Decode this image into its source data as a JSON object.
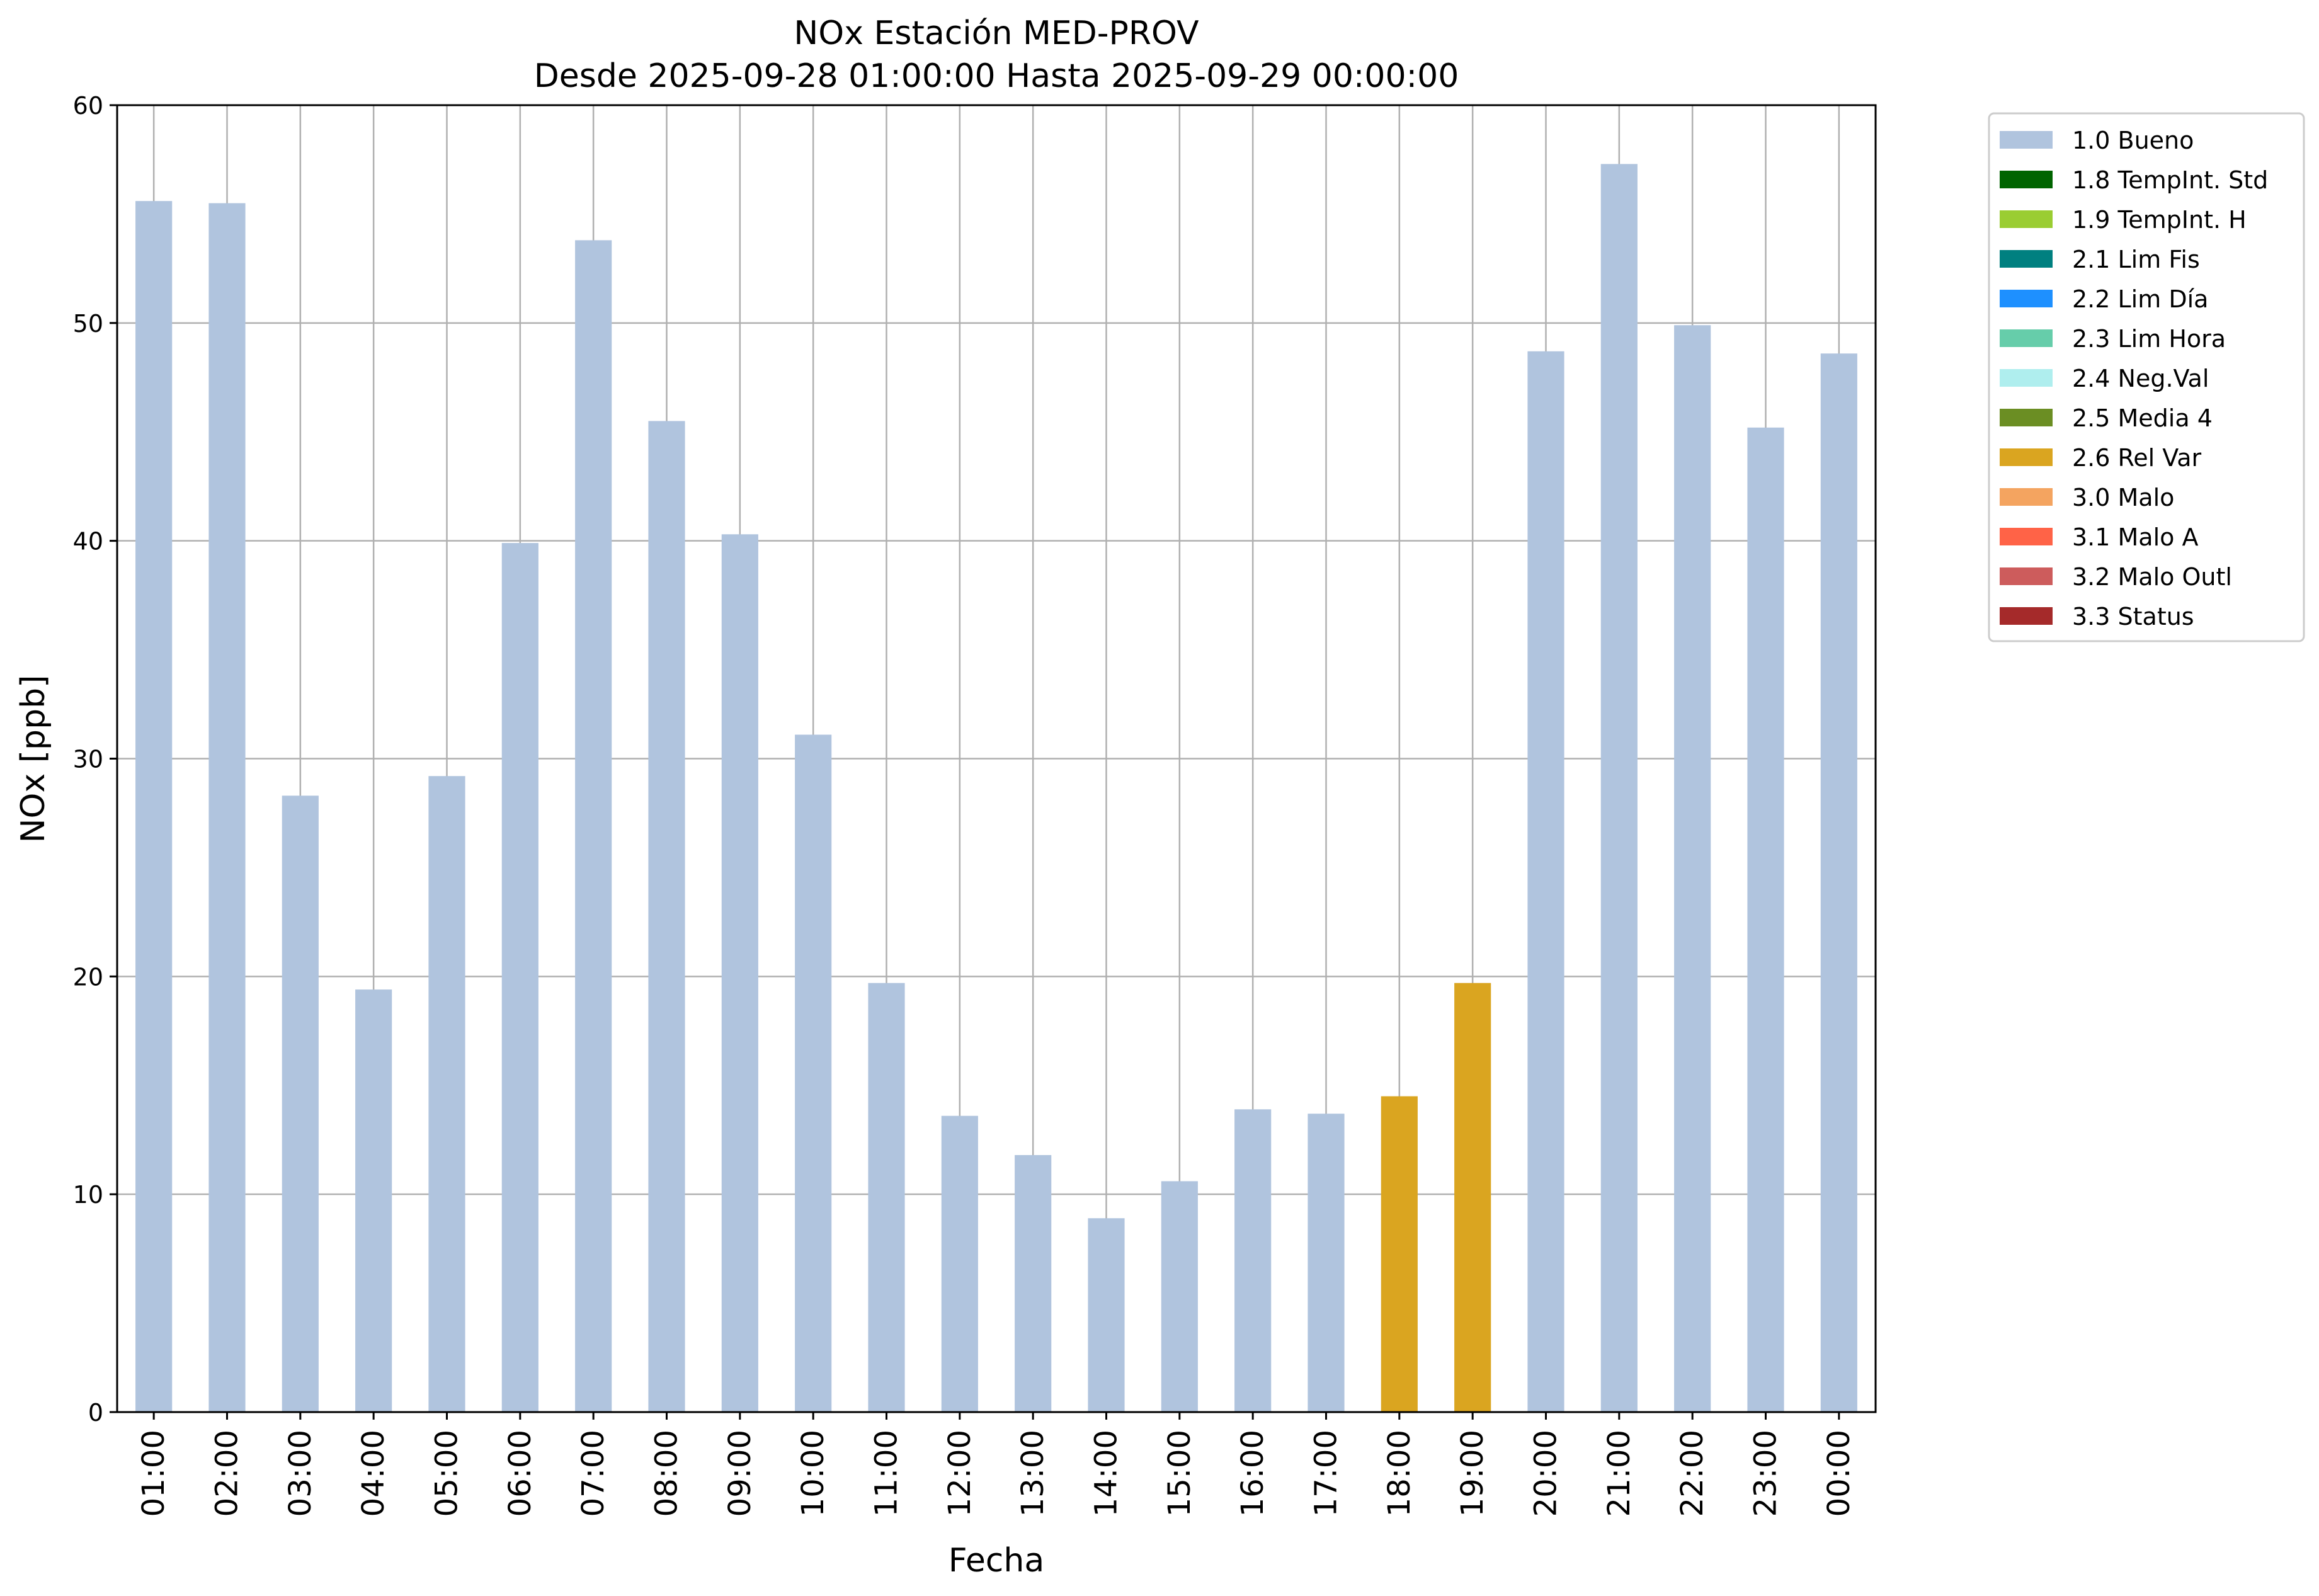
{
  "chart_data": {
    "type": "bar",
    "title": "NOx Estación MED-PROV",
    "subtitle": "Desde 2025-09-28 01:00:00 Hasta 2025-09-29 00:00:00",
    "xlabel": "Fecha",
    "ylabel": "NOx [ppb]",
    "ylim": [
      0,
      60
    ],
    "yticks": [
      0,
      10,
      20,
      30,
      40,
      50,
      60
    ],
    "grid": true,
    "legend_position": "outside-top-right",
    "categories": [
      "01:00",
      "02:00",
      "03:00",
      "04:00",
      "05:00",
      "06:00",
      "07:00",
      "08:00",
      "09:00",
      "10:00",
      "11:00",
      "12:00",
      "13:00",
      "14:00",
      "15:00",
      "16:00",
      "17:00",
      "18:00",
      "19:00",
      "20:00",
      "21:00",
      "22:00",
      "23:00",
      "00:00"
    ],
    "values": [
      55.6,
      55.5,
      28.3,
      19.4,
      29.2,
      39.9,
      53.8,
      45.5,
      40.3,
      31.1,
      19.7,
      13.6,
      11.8,
      8.9,
      10.6,
      13.9,
      13.7,
      14.5,
      19.7,
      48.7,
      57.3,
      49.9,
      45.2,
      48.6
    ],
    "flags": [
      "1.0 Bueno",
      "1.0 Bueno",
      "1.0 Bueno",
      "1.0 Bueno",
      "1.0 Bueno",
      "1.0 Bueno",
      "1.0 Bueno",
      "1.0 Bueno",
      "1.0 Bueno",
      "1.0 Bueno",
      "1.0 Bueno",
      "1.0 Bueno",
      "1.0 Bueno",
      "1.0 Bueno",
      "1.0 Bueno",
      "1.0 Bueno",
      "1.0 Bueno",
      "2.6 Rel Var",
      "2.6 Rel Var",
      "1.0 Bueno",
      "1.0 Bueno",
      "1.0 Bueno",
      "1.0 Bueno",
      "1.0 Bueno"
    ],
    "legend": [
      {
        "label": "1.0 Bueno",
        "color": "#b0c4de"
      },
      {
        "label": "1.8 TempInt. Std",
        "color": "#006400"
      },
      {
        "label": "1.9 TempInt. H",
        "color": "#9acd32"
      },
      {
        "label": "2.1 Lim Fis",
        "color": "#008080"
      },
      {
        "label": "2.2 Lim Día",
        "color": "#1e90ff"
      },
      {
        "label": "2.3 Lim Hora",
        "color": "#66cdaa"
      },
      {
        "label": "2.4 Neg.Val",
        "color": "#afeeee"
      },
      {
        "label": "2.5 Media 4",
        "color": "#6b8e23"
      },
      {
        "label": "2.6 Rel Var",
        "color": "#daa520"
      },
      {
        "label": "3.0 Malo",
        "color": "#f4a460"
      },
      {
        "label": "3.1 Malo A",
        "color": "#ff6347"
      },
      {
        "label": "3.2 Malo Outl",
        "color": "#cd5c5c"
      },
      {
        "label": "3.3 Status",
        "color": "#a52a2a"
      }
    ]
  }
}
